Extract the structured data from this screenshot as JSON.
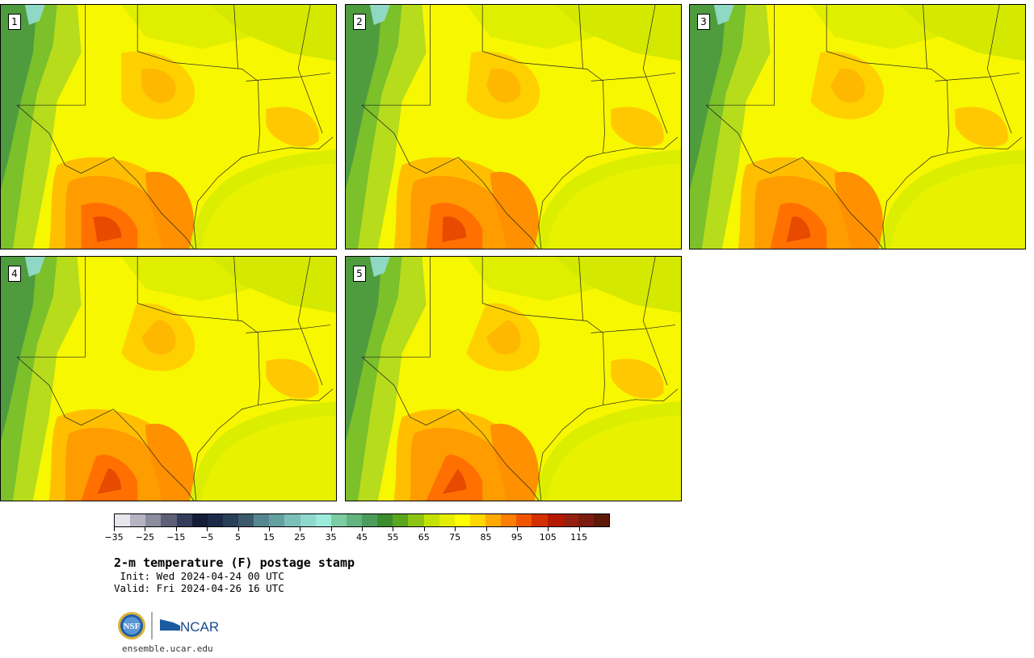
{
  "panels": [
    {
      "label": "1"
    },
    {
      "label": "2"
    },
    {
      "label": "3"
    },
    {
      "label": "4"
    },
    {
      "label": "5"
    }
  ],
  "colorbar": {
    "tick_labels": [
      "−35",
      "−25",
      "−15",
      "−5",
      "5",
      "15",
      "25",
      "35",
      "45",
      "55",
      "65",
      "75",
      "85",
      "95",
      "105",
      "115"
    ],
    "colors": [
      "#e6e6ec",
      "#b4b4c2",
      "#8c8c9e",
      "#5e6078",
      "#343c5c",
      "#141c38",
      "#1c2a48",
      "#2a4058",
      "#3c5a6c",
      "#568690",
      "#64a0a0",
      "#7ac0b8",
      "#8ed8cc",
      "#9cecdc",
      "#7ccca4",
      "#64b480",
      "#4c9c5c",
      "#3c8c30",
      "#5aa61e",
      "#8cc414",
      "#c4e200",
      "#e6ee00",
      "#ffff00",
      "#ffd700",
      "#ffaa00",
      "#ff7f00",
      "#f25500",
      "#d53000",
      "#b51a00",
      "#962010",
      "#7a1c10",
      "#5e1808"
    ]
  },
  "title": "2-m temperature (F) postage stamp",
  "init": " Init: Wed 2024-04-24 00 UTC",
  "valid": "Valid: Fri 2024-04-26 16 UTC",
  "logo": {
    "nsf_text": "NSF",
    "ncar_text": "NCAR"
  },
  "url": "ensemble.ucar.edu"
}
